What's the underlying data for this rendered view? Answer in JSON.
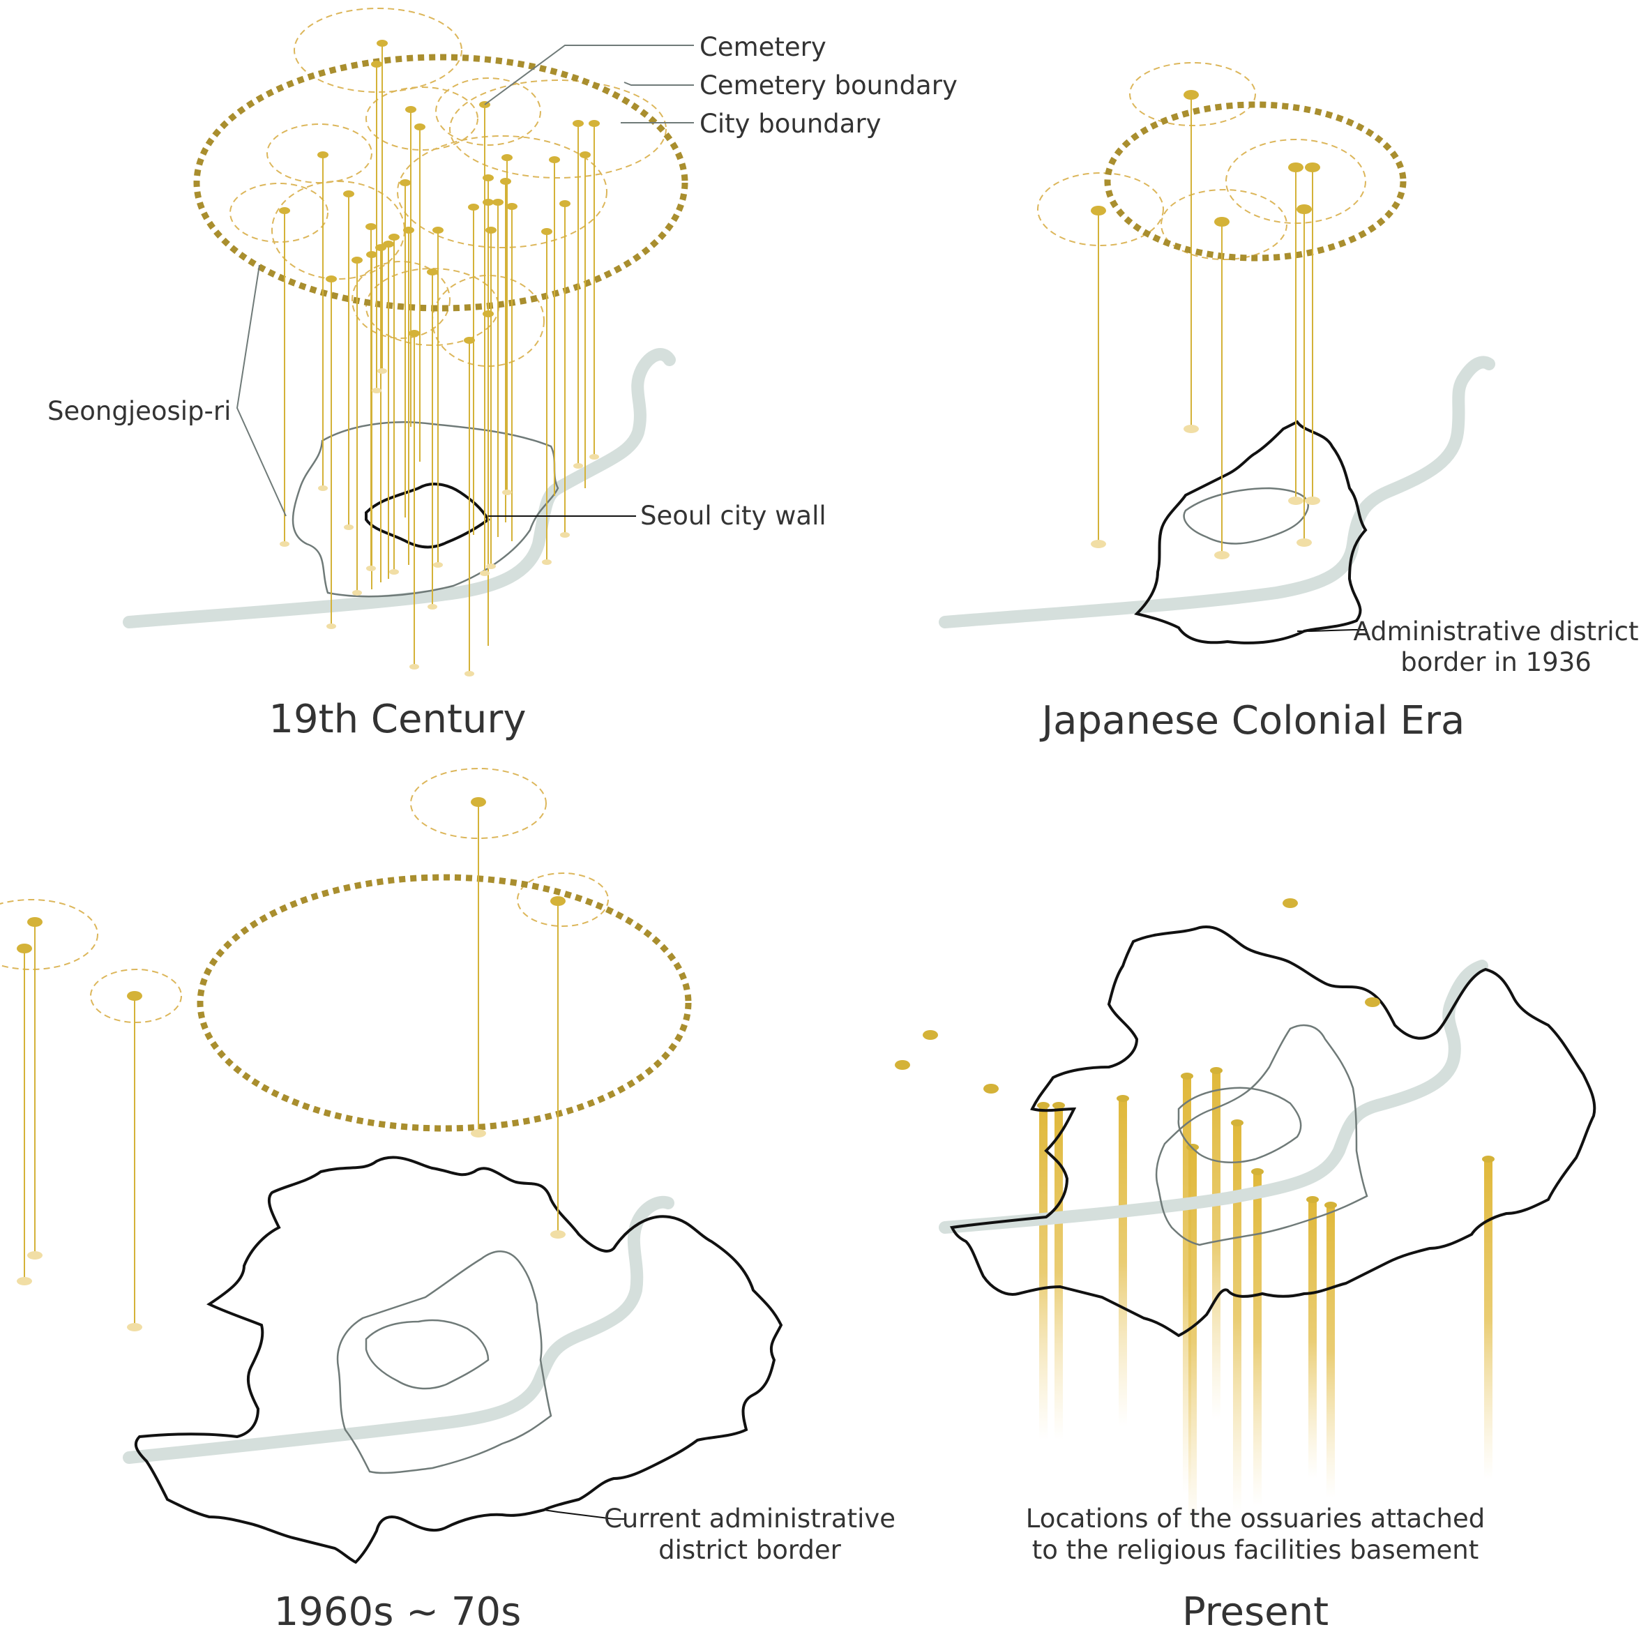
{
  "colors": {
    "marker": "#d4b238",
    "marker_dark": "#b8962e",
    "ring": "#a98e2e",
    "ring_light": "#dcb65a",
    "river": "#d5dfdc",
    "border": "#111111",
    "inner_border": "#6f7a78",
    "text": "#333333"
  },
  "legend": {
    "cemetery": "Cemetery",
    "cemetery_boundary": "Cemetery boundary",
    "city_boundary": "City boundary"
  },
  "panels": {
    "p19": {
      "title": "19th Century",
      "seongjeosip_label": "Seongjeosip-ri",
      "city_wall_label": "Seoul city wall"
    },
    "colonial": {
      "title": "Japanese Colonial Era",
      "district_label_1": "Administrative district",
      "district_label_2": "border in 1936"
    },
    "sixties": {
      "title": "1960s ~ 70s",
      "current_label_1": "Current administrative",
      "current_label_2": "district border"
    },
    "present": {
      "title": "Present",
      "ossuary_label_1": "Locations of the ossuaries attached",
      "ossuary_label_2": "to the religious facilities basement"
    }
  },
  "icons": [
    "cemetery-marker-icon",
    "cemetery-boundary-ring",
    "city-boundary-ring",
    "river-shape",
    "district-border-shape",
    "ossuary-column-icon"
  ]
}
